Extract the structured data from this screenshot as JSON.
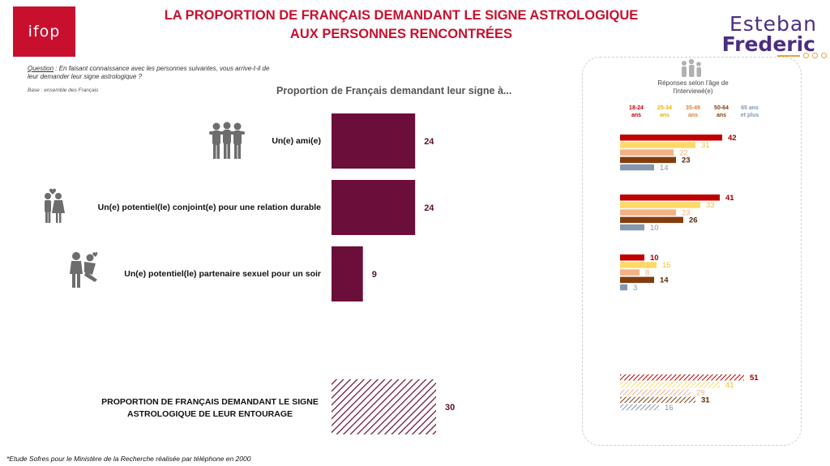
{
  "header": {
    "ifop_logo_text": "ifop",
    "title_line1": "LA PROPORTION DE FRANÇAIS DEMANDANT LE SIGNE ASTROLOGIQUE",
    "title_line2": "AUX PERSONNES RENCONTRÉES",
    "brand_line1": "Esteban",
    "brand_line2": "Frederic"
  },
  "question": {
    "label": "Question",
    "text": " : En faisant connaissance avec les personnes suivantes, vous arrive-t-il de leur demander leur signe astrologique ?",
    "base": "Base : ensemble des Français"
  },
  "footnote": "*Etude Sofres pour le Ministère de la Recherche réalisée par téléphone en 2000",
  "icons": [
    "group-of-friends-icon",
    "couple-heart-icon",
    "couple-kissing-icon",
    "people-age-icon"
  ],
  "colors": {
    "main_bar": "#6b0f3a",
    "age_18_24": "#c00000",
    "age_25_34": "#ffd966",
    "age_35_49": "#f4b183",
    "age_50_64": "#843c0c",
    "age_65_plus": "#8497b0"
  },
  "chart_data": [
    {
      "type": "bar",
      "orientation": "horizontal",
      "title": "Proportion de Français demandant leur signe à...",
      "categories": [
        "Un(e) ami(e)",
        "Un(e) potentiel(le) conjoint(e) pour une relation durable",
        "Un(e) potentiel(le) partenaire sexuel pour un soir",
        "PROPORTION DE FRANÇAIS DEMANDANT LE SIGNE ASTROLOGIQUE DE LEUR ENTOURAGE"
      ],
      "values": [
        24,
        24,
        9,
        30
      ],
      "value_labels": [
        "24",
        "24",
        "9",
        "30"
      ],
      "xlim": [
        0,
        100
      ],
      "total_row_hatched": true,
      "grid": false
    },
    {
      "type": "bar",
      "orientation": "horizontal",
      "title": "Réponses selon l'âge de l'interviewé(e)",
      "groups": [
        "Un(e) ami(e)",
        "Un(e) potentiel(le) conjoint(e) pour une relation durable",
        "Un(e) potentiel(le) partenaire sexuel pour un soir",
        "PROPORTION DE FRANÇAIS DEMANDANT LE SIGNE ASTROLOGIQUE DE LEUR ENTOURAGE"
      ],
      "series": [
        {
          "name": "18-24 ans",
          "line1": "18-24",
          "line2": "ans",
          "color": "#c00000",
          "values": [
            42,
            41,
            10,
            51
          ]
        },
        {
          "name": "25-34 ans",
          "line1": "25-34",
          "line2": "ans",
          "color": "#ffd966",
          "values": [
            31,
            33,
            15,
            41
          ]
        },
        {
          "name": "35-49 ans",
          "line1": "35-49",
          "line2": "ans",
          "color": "#f4b183",
          "values": [
            22,
            23,
            8,
            29
          ]
        },
        {
          "name": "50-64 ans",
          "line1": "50-64",
          "line2": "ans",
          "color": "#843c0c",
          "values": [
            23,
            26,
            14,
            31
          ]
        },
        {
          "name": "65 ans et plus",
          "line1": "65 ans",
          "line2": "et plus",
          "color": "#8497b0",
          "values": [
            14,
            10,
            3,
            16
          ]
        }
      ],
      "xlim": [
        0,
        100
      ],
      "last_group_hatched": true,
      "legend": "top",
      "grid": false
    }
  ]
}
